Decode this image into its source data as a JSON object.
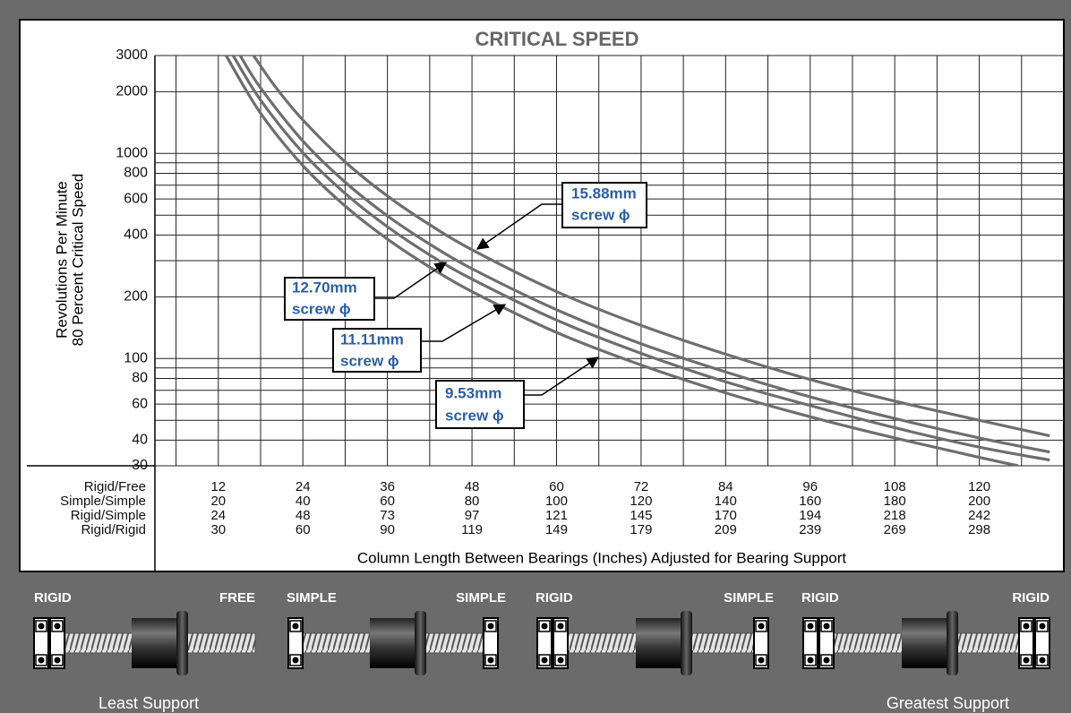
{
  "chart_data": {
    "type": "line",
    "title": "CRITICAL SPEED",
    "y_label": [
      "Revolutions Per Minute",
      "80 Percent Critical Speed"
    ],
    "x_label": "Column Length Between Bearings (Inches) Adjusted for Bearing Support",
    "y_log": true,
    "ylim": [
      30,
      3000
    ],
    "yticks": [
      30,
      40,
      60,
      80,
      100,
      200,
      400,
      600,
      800,
      1000,
      2000,
      3000
    ],
    "y_minor_grid": [
      50,
      70,
      90,
      300,
      500,
      700,
      900
    ],
    "xlim": [
      3,
      132
    ],
    "xgrid": [
      6,
      12,
      18,
      24,
      30,
      36,
      42,
      48,
      54,
      60,
      66,
      72,
      78,
      84,
      90,
      96,
      102,
      108,
      114,
      120,
      126
    ],
    "x_label_rows": [
      {
        "name": "Rigid/Free",
        "values": [
          12,
          24,
          36,
          48,
          60,
          72,
          84,
          96,
          108,
          120
        ]
      },
      {
        "name": "Simple/Simple",
        "values": [
          20,
          40,
          60,
          80,
          100,
          120,
          140,
          160,
          180,
          200
        ]
      },
      {
        "name": "Rigid/Simple",
        "values": [
          24,
          48,
          73,
          97,
          121,
          145,
          170,
          194,
          218,
          242
        ]
      },
      {
        "name": "Rigid/Rigid",
        "values": [
          30,
          60,
          90,
          119,
          149,
          179,
          209,
          239,
          269,
          298
        ]
      }
    ],
    "series": [
      {
        "name": "15.88mm",
        "note": "screw ϕ",
        "color": "#6e6e6e",
        "x": [
          17,
          20,
          24,
          30,
          36,
          42,
          48,
          60,
          72,
          84,
          96,
          108,
          120,
          130
        ],
        "values": [
          3000,
          2133,
          1455,
          909,
          620,
          449,
          339,
          212,
          145,
          105,
          79,
          62,
          50,
          42
        ]
      },
      {
        "name": "12.70mm",
        "note": "screw ϕ",
        "color": "#6e6e6e",
        "x": [
          15.1,
          18,
          24,
          30,
          36,
          42,
          48,
          60,
          72,
          84,
          96,
          108,
          120,
          130
        ],
        "values": [
          3000,
          2085,
          1149,
          724,
          496,
          361,
          274,
          173,
          118,
          86,
          65,
          51,
          41,
          35
        ]
      },
      {
        "name": "11.11mm",
        "note": "screw ϕ",
        "color": "#6e6e6e",
        "x": [
          14.1,
          18,
          24,
          30,
          36,
          42,
          48,
          60,
          72,
          84,
          96,
          108,
          120,
          130
        ],
        "values": [
          3000,
          1818,
          1008,
          638,
          439,
          320,
          244,
          154,
          106,
          77,
          59,
          46,
          37,
          32
        ]
      },
      {
        "name": "9.53mm",
        "note": "screw ϕ",
        "color": "#6e6e6e",
        "x": [
          13.1,
          18,
          24,
          30,
          36,
          42,
          48,
          60,
          72,
          84,
          96,
          108,
          120,
          125.5
        ],
        "values": [
          3000,
          1569,
          872,
          554,
          382,
          279,
          212,
          134,
          93,
          68,
          52,
          41,
          33,
          30
        ]
      }
    ]
  },
  "support_diagrams": [
    {
      "left": "RIGID",
      "right": "FREE"
    },
    {
      "left": "SIMPLE",
      "right": "SIMPLE"
    },
    {
      "left": "RIGID",
      "right": "SIMPLE"
    },
    {
      "left": "RIGID",
      "right": "RIGID"
    }
  ],
  "footer": {
    "left": "Least Support",
    "right": "Greatest Support"
  }
}
